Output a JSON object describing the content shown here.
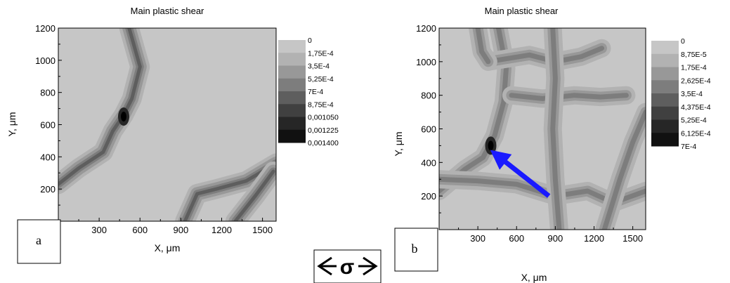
{
  "panels": [
    {
      "id": "a",
      "title": "Main plastic shear",
      "xlabel": "X, μm",
      "ylabel": "Y, μm",
      "xlim": [
        0,
        1600
      ],
      "ylim": [
        0,
        1200
      ],
      "xticks": [
        "300",
        "600",
        "900",
        "1200",
        "1500"
      ],
      "yticks": [
        "200",
        "400",
        "600",
        "800",
        "1000",
        "1200"
      ],
      "colorbar_levels": [
        "0",
        "1,75E-4",
        "3,5E-4",
        "5,25E-4",
        "7E-4",
        "8,75E-4",
        "0,001050",
        "0,001225",
        "0,001400"
      ],
      "panel_label": "a"
    },
    {
      "id": "b",
      "title": "Main plastic shear",
      "xlabel": "X, μm",
      "ylabel": "Y, μm",
      "xlim": [
        0,
        1600
      ],
      "ylim": [
        0,
        1200
      ],
      "xticks": [
        "300",
        "600",
        "900",
        "1200",
        "1500"
      ],
      "yticks": [
        "200",
        "400",
        "600",
        "800",
        "1000",
        "1200"
      ],
      "colorbar_levels": [
        "0",
        "8,75E-5",
        "1,75E-4",
        "2,625E-4",
        "3,5E-4",
        "4,375E-4",
        "5,25E-4",
        "6,125E-4",
        "7E-4"
      ],
      "panel_label": "b",
      "arrow_color": "#1a1aff"
    }
  ],
  "sigma_symbol": "σ",
  "chart_data": [
    {
      "type": "contour",
      "title": "Main plastic shear",
      "xlabel": "X, μm",
      "ylabel": "Y, μm",
      "xlim": [
        0,
        1600
      ],
      "ylim": [
        0,
        1200
      ],
      "levels": [
        0,
        0.000175,
        0.00035,
        0.000525,
        0.0007,
        0.000875,
        0.00105,
        0.001225,
        0.0014
      ],
      "bands": [
        {
          "path": [
            [
              0,
              230
            ],
            [
              150,
              330
            ],
            [
              330,
              430
            ],
            [
              400,
              560
            ],
            [
              480,
              660
            ],
            [
              540,
              760
            ],
            [
              600,
              960
            ],
            [
              520,
              1200
            ]
          ]
        },
        {
          "path": [
            [
              930,
              0
            ],
            [
              1020,
              170
            ],
            [
              1160,
              200
            ],
            [
              1380,
              250
            ],
            [
              1600,
              360
            ]
          ]
        },
        {
          "path": [
            [
              1300,
              0
            ],
            [
              1450,
              160
            ],
            [
              1580,
              310
            ]
          ]
        }
      ],
      "max_region": [
        480,
        650
      ]
    },
    {
      "type": "contour",
      "title": "Main plastic shear",
      "xlabel": "X, μm",
      "ylabel": "Y, μm",
      "xlim": [
        0,
        1600
      ],
      "ylim": [
        0,
        1200
      ],
      "levels": [
        0,
        8.75e-05,
        0.000175,
        0.0002625,
        0.00035,
        0.0004375,
        0.000525,
        0.0006125,
        0.0007
      ],
      "bands": [
        {
          "path": [
            [
              0,
              230
            ],
            [
              200,
              360
            ],
            [
              340,
              430
            ],
            [
              430,
              560
            ],
            [
              500,
              760
            ],
            [
              520,
              960
            ],
            [
              460,
              1200
            ]
          ]
        },
        {
          "path": [
            [
              380,
              1000
            ],
            [
              700,
              1040
            ],
            [
              900,
              1000
            ],
            [
              1100,
              1030
            ],
            [
              1260,
              1080
            ]
          ]
        },
        {
          "path": [
            [
              560,
              800
            ],
            [
              800,
              780
            ],
            [
              1050,
              800
            ],
            [
              1250,
              790
            ],
            [
              1450,
              800
            ]
          ]
        },
        {
          "path": [
            [
              0,
              300
            ],
            [
              300,
              290
            ],
            [
              600,
              270
            ],
            [
              900,
              200
            ],
            [
              1150,
              230
            ],
            [
              1350,
              160
            ],
            [
              1600,
              230
            ]
          ]
        },
        {
          "path": [
            [
              880,
              1200
            ],
            [
              900,
              900
            ],
            [
              880,
              600
            ],
            [
              900,
              300
            ],
            [
              930,
              0
            ]
          ]
        },
        {
          "path": [
            [
              1280,
              0
            ],
            [
              1400,
              300
            ],
            [
              1500,
              520
            ],
            [
              1600,
              700
            ]
          ]
        },
        {
          "path": [
            [
              300,
              1200
            ],
            [
              330,
              1060
            ],
            [
              380,
              1000
            ]
          ]
        }
      ],
      "max_region": [
        400,
        500
      ],
      "arrow": {
        "from": [
          850,
          200
        ],
        "to": [
          420,
          460
        ]
      }
    }
  ]
}
